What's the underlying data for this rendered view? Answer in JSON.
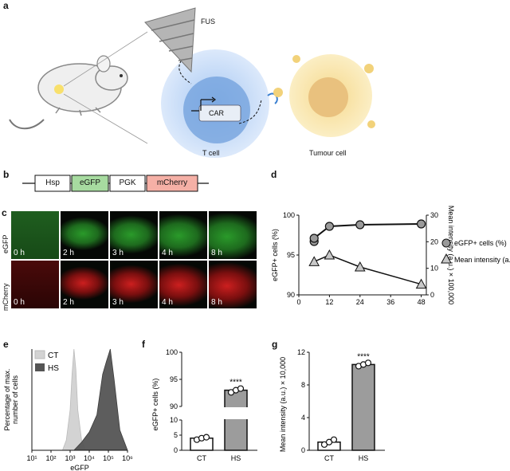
{
  "panels": {
    "a": {
      "label": "a",
      "fus": "FUS",
      "car": "CAR",
      "tcell": "T cell",
      "tumour": "Tumour cell"
    },
    "b": {
      "label": "b",
      "construct": [
        "Hsp",
        "eGFP",
        "PGK",
        "mCherry"
      ]
    },
    "c": {
      "label": "c",
      "rows": [
        {
          "name": "eGFP",
          "color": "#2a9a2a"
        },
        {
          "name": "mCherry",
          "color": "#cc1f1f"
        }
      ],
      "times": [
        "0 h",
        "2 h",
        "3 h",
        "4 h",
        "8 h"
      ]
    },
    "d": {
      "label": "d"
    },
    "e": {
      "label": "e"
    },
    "f": {
      "label": "f"
    },
    "g": {
      "label": "g"
    }
  },
  "chart_data": [
    {
      "id": "d",
      "type": "line",
      "xlabel": "Time (h)",
      "ylabel": "eGFP+ cells (%)",
      "y2label": "Mean intensity (a.u.) × 100,000",
      "xticks": [
        0,
        12,
        24,
        36,
        48
      ],
      "yticks": [
        90,
        95,
        100
      ],
      "y2ticks": [
        0,
        10,
        20,
        30
      ],
      "xlim": [
        0,
        50
      ],
      "ylim": [
        90,
        100
      ],
      "y2lim": [
        0,
        30
      ],
      "series": [
        {
          "name": "eGFP+ cells (%)",
          "marker": "circle",
          "axis": "left",
          "x": [
            6,
            6,
            12,
            24,
            48
          ],
          "y": [
            96.7,
            97.1,
            98.6,
            98.8,
            98.9
          ]
        },
        {
          "name": "Mean intensity (a.u.)",
          "marker": "triangle",
          "axis": "right",
          "x": [
            6,
            12,
            24,
            48
          ],
          "y": [
            12.5,
            15,
            10.5,
            4
          ]
        }
      ]
    },
    {
      "id": "e",
      "type": "area",
      "xlabel": "eGFP",
      "ylabel": "Percentage of max. number of cells",
      "xticks": [
        "10¹",
        "10²",
        "10³",
        "10⁴",
        "10⁵",
        "10⁶"
      ],
      "legend": [
        "CT",
        "HS"
      ],
      "colors": {
        "CT": "#d3d3d3",
        "HS": "#555555"
      },
      "series": [
        {
          "name": "CT",
          "log_x": [
            2.6,
            2.8,
            3.0,
            3.1,
            3.2,
            3.3,
            3.4,
            3.6,
            3.8
          ],
          "y": [
            0,
            10,
            40,
            75,
            100,
            80,
            40,
            10,
            0
          ]
        },
        {
          "name": "HS",
          "log_x": [
            3.2,
            3.6,
            4.0,
            4.4,
            4.7,
            4.9,
            5.1,
            5.3,
            5.6,
            6.0
          ],
          "y": [
            0,
            8,
            18,
            35,
            75,
            88,
            100,
            70,
            20,
            0
          ]
        }
      ]
    },
    {
      "id": "f",
      "type": "bar",
      "ylabel": "eGFP+ cells (%)",
      "categories": [
        "CT",
        "HS"
      ],
      "values": [
        4,
        93
      ],
      "points": [
        [
          3.5,
          4.0,
          4.3
        ],
        [
          92.6,
          93.0,
          93.3
        ]
      ],
      "yticks": [
        0,
        5,
        10,
        90,
        95,
        100
      ],
      "broken_axis": [
        10,
        90
      ],
      "significance": "****"
    },
    {
      "id": "g",
      "type": "bar",
      "ylabel": "Mean intensity (a.u.) × 10,000",
      "categories": [
        "CT",
        "HS"
      ],
      "values": [
        1.0,
        10.5
      ],
      "points": [
        [
          0.7,
          1.0,
          1.3
        ],
        [
          10.3,
          10.5,
          10.7
        ]
      ],
      "yticks": [
        0,
        4,
        8,
        12
      ],
      "ylim": [
        0,
        12
      ],
      "significance": "****"
    }
  ]
}
